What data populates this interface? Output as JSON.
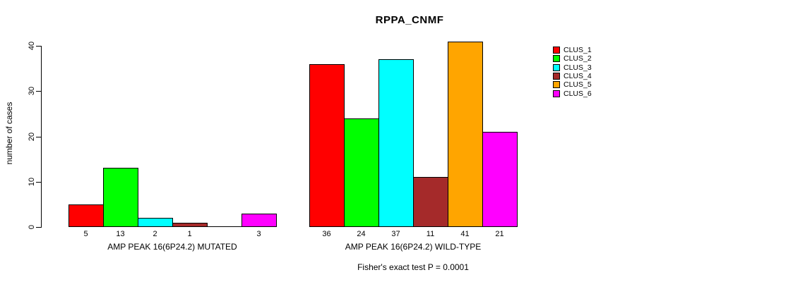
{
  "chart_data": {
    "type": "bar",
    "title": "RPPA_CNMF",
    "ylabel": "number of cases",
    "ylim": [
      0,
      40
    ],
    "yticks": [
      0,
      10,
      20,
      30,
      40
    ],
    "grid": false,
    "legend_position": "top-right-outside",
    "bar_value_label_note": "counts printed under each bar; zero-count bars drawn as flat baseline segment with no label",
    "groups": [
      {
        "label": "AMP PEAK 16(6P24.2) MUTATED"
      },
      {
        "label": "AMP PEAK 16(6P24.2) WILD-TYPE"
      }
    ],
    "series": [
      {
        "name": "CLUS_1",
        "color": "#FF0000",
        "values": [
          5,
          36
        ]
      },
      {
        "name": "CLUS_2",
        "color": "#00FF00",
        "values": [
          13,
          24
        ]
      },
      {
        "name": "CLUS_3",
        "color": "#00FFFF",
        "values": [
          2,
          37
        ]
      },
      {
        "name": "CLUS_4",
        "color": "#A52A2A",
        "values": [
          1,
          11
        ]
      },
      {
        "name": "CLUS_5",
        "color": "#FFA500",
        "values": [
          0,
          41
        ]
      },
      {
        "name": "CLUS_6",
        "color": "#FF00FF",
        "values": [
          3,
          21
        ]
      }
    ],
    "annotation": "Fisher's exact test P = 0.0001",
    "axis_color": "#000000",
    "background_color": "#FFFFFF"
  }
}
